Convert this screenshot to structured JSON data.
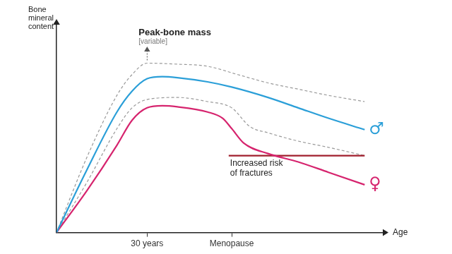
{
  "chart_data": {
    "type": "line",
    "x_label": "Age",
    "y_label": "Bone mineral content",
    "annotations": [
      "Peak-bone mass",
      "[variable]"
    ],
    "xlim": [
      0,
      108
    ],
    "xticks": [
      {
        "value": 30,
        "label": "30 years"
      },
      {
        "value": 58,
        "label": "Menopause"
      }
    ],
    "ylim": [
      0,
      100
    ],
    "grid": false,
    "tick_labels": "x",
    "series": [
      {
        "name": "♂",
        "color": "#2b9fd8",
        "line_style": "solid",
        "x": [
          0,
          10,
          20,
          25,
          30,
          35,
          40,
          50,
          58,
          70,
          80,
          90,
          102
        ],
        "values": [
          0,
          30,
          58,
          68,
          74,
          75,
          74.5,
          72.5,
          70,
          65,
          60,
          55,
          49.5
        ]
      },
      {
        "name": "♀",
        "color": "#d6246e",
        "line_style": "solid",
        "x": [
          0,
          10,
          20,
          25,
          30,
          35,
          40,
          50,
          55,
          58,
          62,
          70,
          80,
          90,
          102
        ],
        "values": [
          0,
          20,
          42,
          54,
          60,
          61,
          60.5,
          58,
          55,
          50,
          43,
          38,
          34,
          29,
          23
        ]
      },
      {
        "color": "#999999",
        "line_style": "dashed",
        "x": [
          0,
          10,
          20,
          25,
          30,
          40,
          50,
          60,
          70,
          80,
          90,
          102
        ],
        "values": [
          0,
          36,
          66,
          76,
          81.5,
          81,
          80,
          76,
          72,
          69,
          66,
          63
        ]
      },
      {
        "color": "#999999",
        "line_style": "dashed",
        "x": [
          0,
          10,
          20,
          25,
          30,
          40,
          50,
          58,
          64,
          70,
          80,
          90,
          102
        ],
        "values": [
          0,
          24,
          50,
          60,
          64,
          65,
          63,
          60,
          51,
          48,
          44,
          41,
          37
        ]
      },
      {
        "name": "Increased risk of fractures",
        "color": "#a01e2c",
        "line_style": "solid",
        "x": [
          57,
          102
        ],
        "values": [
          37,
          37
        ]
      }
    ]
  }
}
